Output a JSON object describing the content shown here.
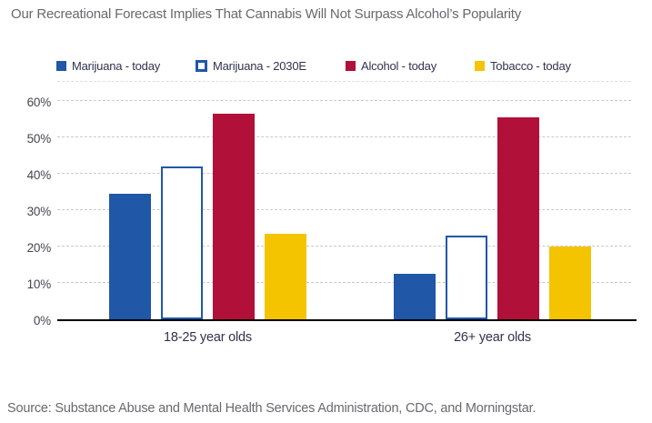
{
  "title": "Our Recreational Forecast Implies That Cannabis Will Not Surpass Alcohol’s Popularity",
  "source": "Source: Substance Abuse and Mental Health Services Administration, CDC, and Morningstar.",
  "colors": {
    "title_text": "#69696d",
    "source_text": "#69696d",
    "legend_text": "#32324e",
    "axis_label_text": "#45454f",
    "category_text": "#32324e",
    "grid": "#c9c9c9",
    "axis_line": "#000000",
    "marijuana_blue": "#2057a7",
    "alcohol_red": "#b11039",
    "tobacco_yellow": "#f5c400"
  },
  "chart_data": {
    "type": "bar",
    "title": "Our Recreational Forecast Implies That Cannabis Will Not Surpass Alcohol’s Popularity",
    "categories": [
      "18-25 year olds",
      "26+ year olds"
    ],
    "series": [
      {
        "name": "Marijuana - today",
        "values": [
          34.5,
          12.5
        ],
        "color": "#2057a7",
        "fill": "solid"
      },
      {
        "name": "Marijuana - 2030E",
        "values": [
          42,
          23
        ],
        "color": "#2057a7",
        "fill": "outline"
      },
      {
        "name": "Alcohol - today",
        "values": [
          56.5,
          55.5
        ],
        "color": "#b11039",
        "fill": "solid"
      },
      {
        "name": "Tobacco - today",
        "values": [
          23.5,
          20
        ],
        "color": "#f5c400",
        "fill": "solid"
      }
    ],
    "xlabel": "",
    "ylabel": "",
    "ytick_labels": [
      "0%",
      "10%",
      "20%",
      "30%",
      "40%",
      "50%",
      "60%"
    ],
    "ytick_values": [
      0,
      10,
      20,
      30,
      40,
      50,
      60
    ],
    "gridline_values": [
      10,
      20,
      30,
      40,
      50,
      60
    ],
    "ylim": [
      0,
      66
    ],
    "grid": "horizontal-dashed",
    "legend_position": "top"
  }
}
